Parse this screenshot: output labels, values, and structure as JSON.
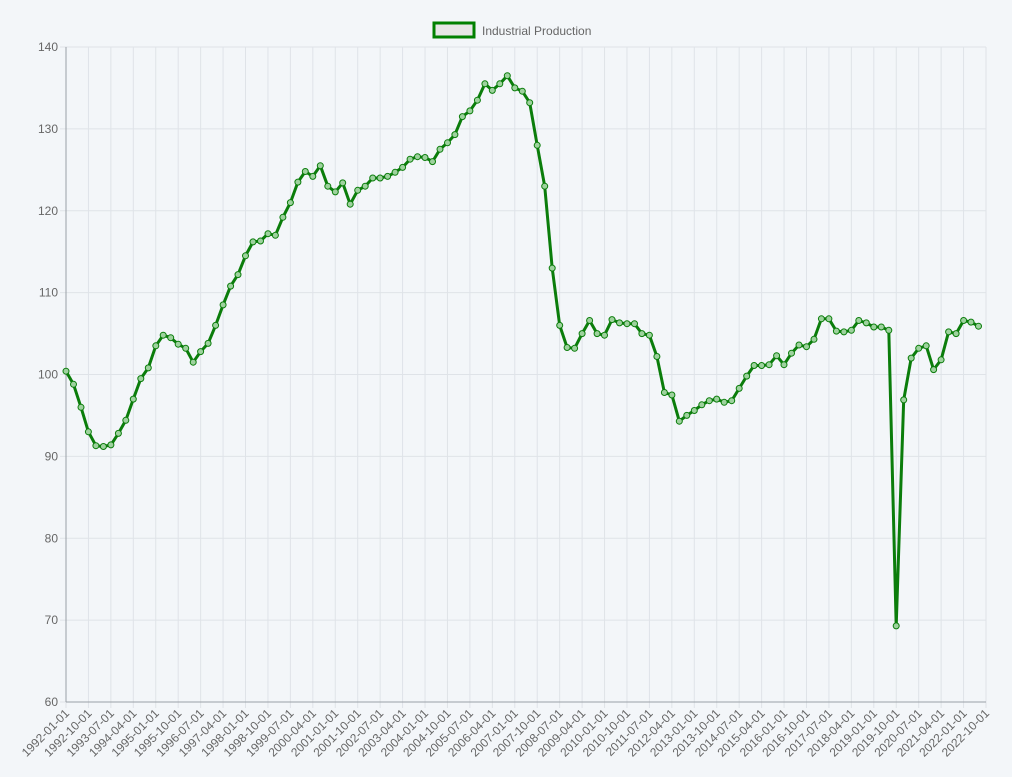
{
  "legend": {
    "label": "Industrial Production",
    "swatch_fill": "#e6e6e6",
    "swatch_stroke": "#008000"
  },
  "colors": {
    "background": "#f3f6f9",
    "grid": "#dfe3e8",
    "axis": "#9aa0a6",
    "tick_text": "#666666",
    "line": "#0b7d0b",
    "point_fill": "#9ed29e"
  },
  "chart_data": {
    "type": "line",
    "ylim": [
      60,
      140
    ],
    "y_ticks": [
      60,
      70,
      80,
      90,
      100,
      110,
      120,
      130,
      140
    ],
    "x_ticks": [
      "1992-01-01",
      "1992-10-01",
      "1993-07-01",
      "1994-04-01",
      "1995-01-01",
      "1995-10-01",
      "1996-07-01",
      "1997-04-01",
      "1998-01-01",
      "1998-10-01",
      "1999-07-01",
      "2000-04-01",
      "2001-01-01",
      "2001-10-01",
      "2002-07-01",
      "2003-04-01",
      "2004-01-01",
      "2004-10-01",
      "2005-07-01",
      "2006-04-01",
      "2007-01-01",
      "2007-10-01",
      "2008-07-01",
      "2009-04-01",
      "2010-01-01",
      "2010-10-01",
      "2011-07-01",
      "2012-04-01",
      "2013-01-01",
      "2013-10-01",
      "2014-07-01",
      "2015-04-01",
      "2016-01-01",
      "2016-10-01",
      "2017-07-01",
      "2018-04-01",
      "2019-01-01",
      "2019-10-01",
      "2020-07-01",
      "2021-04-01",
      "2022-01-01",
      "2022-10-01"
    ],
    "x_range": [
      "1992-01-01",
      "2022-10-01"
    ],
    "series": [
      {
        "name": "Industrial Production",
        "frequency": "quarterly",
        "values": [
          100.4,
          98.8,
          96,
          93,
          91.3,
          91.2,
          91.4,
          92.8,
          94.4,
          97,
          99.5,
          100.8,
          103.5,
          104.8,
          104.5,
          103.7,
          103.2,
          101.5,
          102.8,
          103.8,
          106,
          108.5,
          110.8,
          112.2,
          114.5,
          116.2,
          116.3,
          117.2,
          117,
          119.2,
          121,
          123.5,
          124.8,
          124.2,
          125.5,
          123,
          122.3,
          123.4,
          120.8,
          122.5,
          123,
          124,
          124,
          124.2,
          124.7,
          125.3,
          126.3,
          126.6,
          126.5,
          126,
          127.5,
          128.3,
          129.3,
          131.5,
          132.2,
          133.5,
          135.5,
          134.7,
          135.5,
          136.5,
          135,
          134.6,
          133.2,
          128,
          123,
          113,
          106,
          103.3,
          103.2,
          105,
          106.6,
          105,
          104.8,
          106.7,
          106.3,
          106.2,
          106.2,
          105,
          104.8,
          102.2,
          97.8,
          97.5,
          94.3,
          95,
          95.6,
          96.3,
          96.8,
          97,
          96.6,
          96.8,
          98.3,
          99.8,
          101.1,
          101.1,
          101.2,
          102.3,
          101.2,
          102.6,
          103.6,
          103.4,
          104.3,
          106.8,
          106.8,
          105.3,
          105.2,
          105.4,
          106.6,
          106.3,
          105.8,
          105.8,
          105.4,
          69.3,
          96.9,
          102,
          103.2,
          103.5,
          100.6,
          101.8,
          105.2,
          105,
          106.6,
          106.4,
          105.9
        ]
      }
    ],
    "title": "",
    "xlabel": "",
    "ylabel": "",
    "grid": true,
    "legend_position": "top-center"
  }
}
